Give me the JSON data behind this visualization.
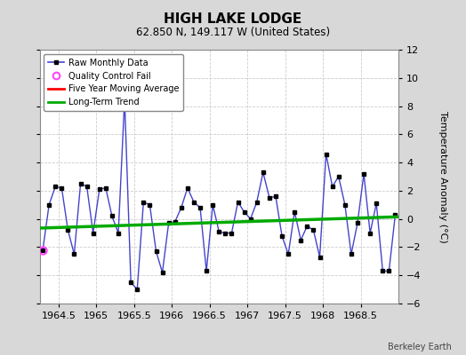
{
  "title": "HIGH LAKE LODGE",
  "subtitle": "62.850 N, 149.117 W (United States)",
  "ylabel": "Temperature Anomaly (°C)",
  "credit": "Berkeley Earth",
  "xlim": [
    1964.25,
    1969.0
  ],
  "ylim": [
    -6,
    12
  ],
  "yticks": [
    -6,
    -4,
    -2,
    0,
    2,
    4,
    6,
    8,
    10,
    12
  ],
  "xticks": [
    1964.5,
    1965.0,
    1965.5,
    1966.0,
    1966.5,
    1967.0,
    1967.5,
    1968.0,
    1968.5
  ],
  "xticklabels": [
    "1964.5",
    "1965",
    "1965.5",
    "1966",
    "1966.5",
    "1967",
    "1967.5",
    "1968",
    "1968.5"
  ],
  "bg_color": "#d8d8d8",
  "plot_bg_color": "#ffffff",
  "raw_x": [
    1964.292,
    1964.375,
    1964.458,
    1964.542,
    1964.625,
    1964.708,
    1964.792,
    1964.875,
    1964.958,
    1965.042,
    1965.125,
    1965.208,
    1965.292,
    1965.375,
    1965.458,
    1965.542,
    1965.625,
    1965.708,
    1965.792,
    1965.875,
    1965.958,
    1966.042,
    1966.125,
    1966.208,
    1966.292,
    1966.375,
    1966.458,
    1966.542,
    1966.625,
    1966.708,
    1966.792,
    1966.875,
    1966.958,
    1967.042,
    1967.125,
    1967.208,
    1967.292,
    1967.375,
    1967.458,
    1967.542,
    1967.625,
    1967.708,
    1967.792,
    1967.875,
    1967.958,
    1968.042,
    1968.125,
    1968.208,
    1968.292,
    1968.375,
    1968.458,
    1968.542,
    1968.625,
    1968.708,
    1968.792,
    1968.875,
    1968.958
  ],
  "raw_y": [
    -2.2,
    1.0,
    2.3,
    2.2,
    -0.8,
    -2.5,
    2.5,
    2.3,
    -1.0,
    2.1,
    2.2,
    0.2,
    -1.0,
    8.5,
    -4.5,
    -5.0,
    1.2,
    1.0,
    -2.3,
    -3.8,
    -0.3,
    -0.2,
    0.8,
    2.2,
    1.2,
    0.8,
    -3.7,
    1.0,
    -0.9,
    -1.0,
    -1.0,
    1.2,
    0.5,
    0.0,
    1.2,
    3.3,
    1.5,
    1.6,
    -1.2,
    -2.5,
    0.5,
    -1.5,
    -0.5,
    -0.8,
    -2.7,
    4.6,
    2.3,
    3.0,
    1.0,
    -2.5,
    -0.3,
    3.2,
    -1.0,
    1.1,
    -3.7,
    -3.7,
    0.3
  ],
  "qc_fail_x": [
    1964.292
  ],
  "qc_fail_y": [
    -2.2
  ],
  "trend_x": [
    1964.25,
    1969.0
  ],
  "trend_y": [
    -0.65,
    0.15
  ],
  "raw_line_color": "#4444cc",
  "marker_color": "#000000",
  "qc_color": "#ff44ff",
  "moving_avg_color": "#ff0000",
  "trend_color": "#00aa00",
  "grid_color": "#cccccc",
  "spine_color": "#888888"
}
